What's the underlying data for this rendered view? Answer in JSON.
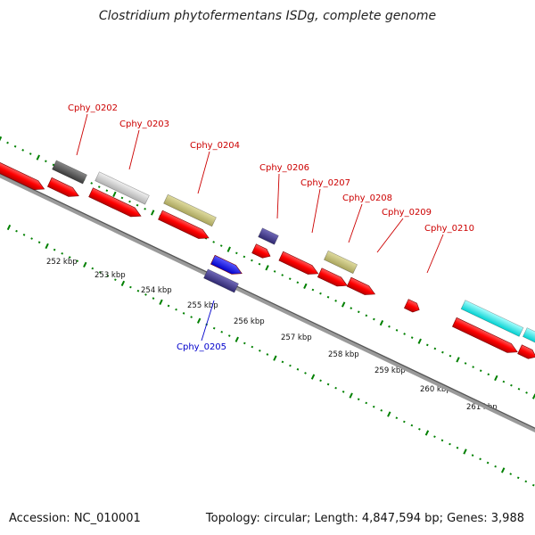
{
  "title": "Clostridium phytofermentans ISDg, complete genome",
  "footer": {
    "accession": "Accession: NC_010001",
    "summary": "Topology: circular; Length: 4,847,594 bp; Genes: 3,988"
  },
  "colors": {
    "forward_cds": "#ff0000",
    "reverse_label": "#0000dd",
    "backbone": "#808080",
    "tick_marks": "#008000",
    "rna": "#bdb76b",
    "khaki": "#bdb76b",
    "navy": "#483d8b",
    "grey_dark": "#555555",
    "grey_light": "#cccccc",
    "cyan": "#00ffff",
    "blue": "#0000ff"
  },
  "ruler_labels": [
    "252 kbp",
    "253 kbp",
    "254 kbp",
    "255 kbp",
    "256 kbp",
    "257 kbp",
    "258 kbp",
    "259 kbp",
    "260 kbp",
    "261 kbp"
  ],
  "gene_labels": [
    {
      "text": "Cphy_0202",
      "color": "#cc0000"
    },
    {
      "text": "Cphy_0203",
      "color": "#cc0000"
    },
    {
      "text": "Cphy_0204",
      "color": "#cc0000"
    },
    {
      "text": "Cphy_0205",
      "color": "#0000cc"
    },
    {
      "text": "Cphy_0206",
      "color": "#cc0000"
    },
    {
      "text": "Cphy_0207",
      "color": "#cc0000"
    },
    {
      "text": "Cphy_0208",
      "color": "#cc0000"
    },
    {
      "text": "Cphy_0209",
      "color": "#cc0000"
    },
    {
      "text": "Cphy_0210",
      "color": "#cc0000"
    }
  ]
}
